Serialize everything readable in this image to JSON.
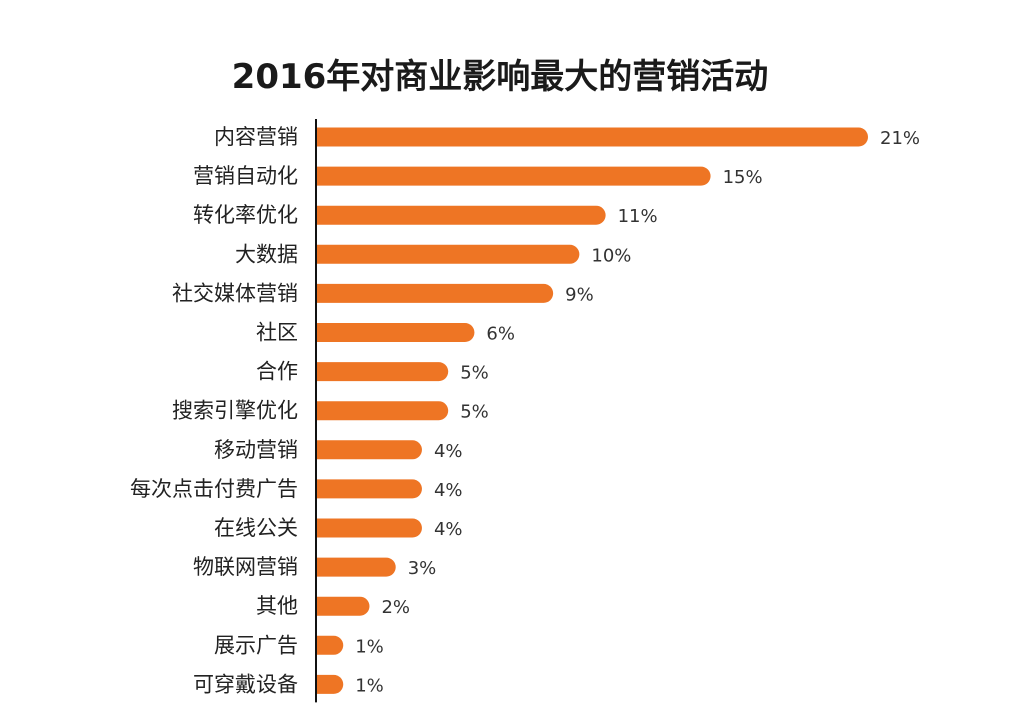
{
  "chart_data": {
    "type": "bar",
    "orientation": "horizontal",
    "title": "2016年对商业影响最大的营销活动",
    "xlabel": "",
    "ylabel": "",
    "categories": [
      "内容营销",
      "营销自动化",
      "转化率优化",
      "大数据",
      "社交媒体营销",
      "社区",
      "合作",
      "搜索引擎优化",
      "移动营销",
      "每次点击付费广告",
      "在线公关",
      "物联网营销",
      "其他",
      "展示广告",
      "可穿戴设备"
    ],
    "values": [
      21,
      15,
      11,
      10,
      9,
      6,
      5,
      5,
      4,
      4,
      4,
      3,
      2,
      1,
      1
    ],
    "value_labels": [
      "21%",
      "15%",
      "11%",
      "10%",
      "9%",
      "6%",
      "5%",
      "5%",
      "4%",
      "4%",
      "4%",
      "3%",
      "2%",
      "1%",
      "1%"
    ],
    "xlim": [
      0,
      21
    ],
    "grid": false,
    "legend": "none",
    "colors": {
      "bar": "#EE7524",
      "axis": "#111111",
      "text": "#222222"
    }
  }
}
